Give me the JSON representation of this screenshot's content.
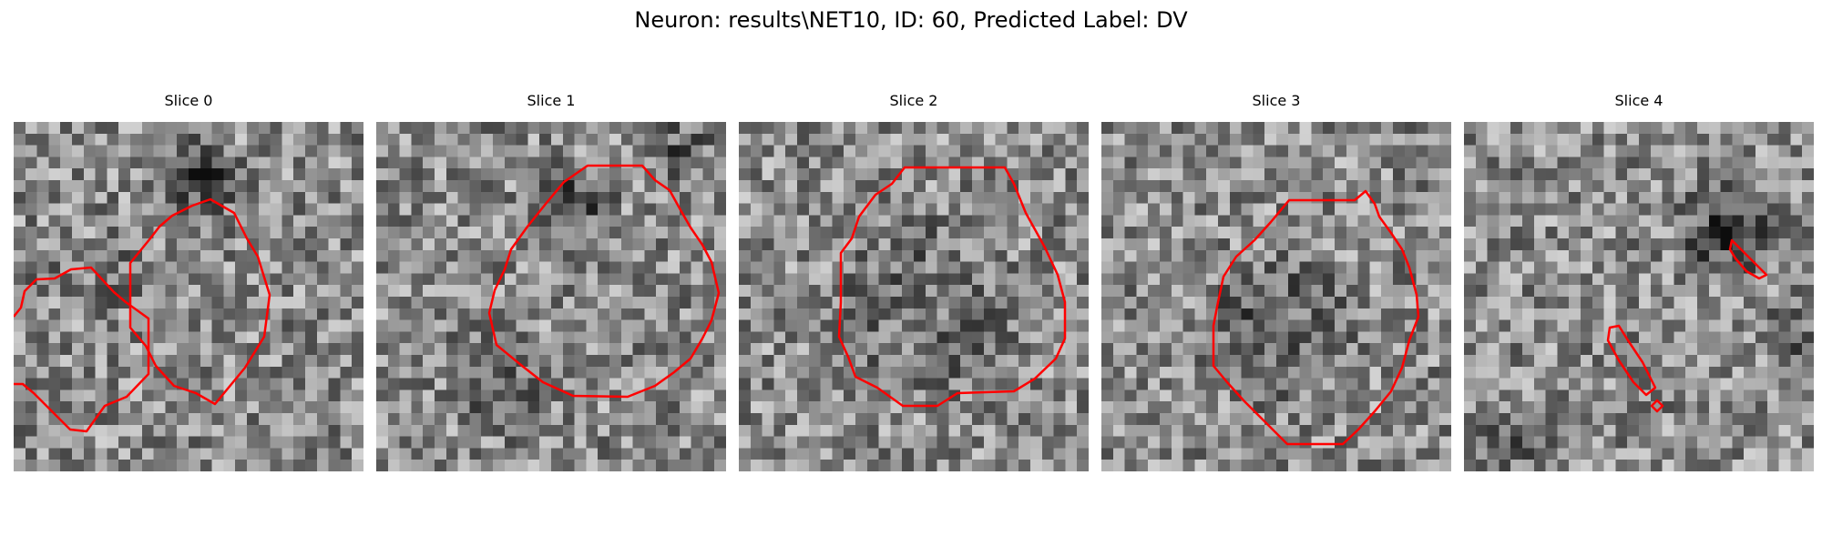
{
  "figure": {
    "title": "Neuron: results\\NET10, ID: 60, Predicted Label: DV"
  },
  "panels": [
    {
      "title": "Slice 0",
      "contour_color": "#ff0000"
    },
    {
      "title": "Slice 1",
      "contour_color": "#ff0000"
    },
    {
      "title": "Slice 2",
      "contour_color": "#ff0000"
    },
    {
      "title": "Slice 3",
      "contour_color": "#ff0000"
    },
    {
      "title": "Slice 4",
      "contour_color": "#ff0000"
    }
  ],
  "colormap": "gray"
}
